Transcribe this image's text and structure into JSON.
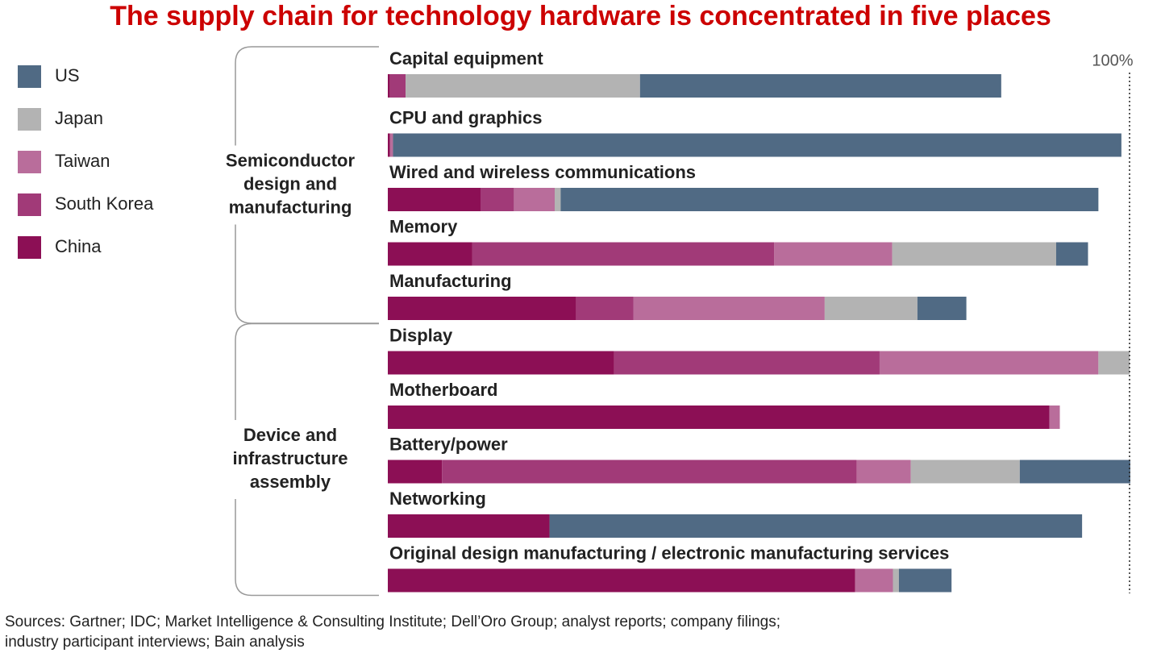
{
  "chart_data": {
    "type": "stacked-bar-horizontal",
    "title": "The supply chain for technology hardware is concentrated in five places",
    "groups": [
      {
        "label": [
          "Semiconductor",
          "design and",
          "manufacturing"
        ],
        "categories": [
          "Capital equipment",
          "CPU and graphics",
          "Wired and wireless communications",
          "Memory",
          "Manufacturing"
        ]
      },
      {
        "label": [
          "Device and",
          "infrastructure",
          "assembly"
        ],
        "categories": [
          "Display",
          "Motherboard",
          "Battery/power",
          "Networking",
          "Original design manufacturing / electronic manufacturing services"
        ]
      }
    ],
    "series": [
      {
        "name": "China",
        "color": "#8c0f55",
        "values": [
          0.3,
          0.3,
          12.5,
          11.4,
          25.4,
          30.5,
          89.2,
          7.3,
          21.8,
          63
        ]
      },
      {
        "name": "South Korea",
        "color": "#a13a78",
        "values": [
          2.1,
          0,
          4.5,
          40.7,
          7.7,
          35.8,
          0,
          55.9,
          0,
          0
        ]
      },
      {
        "name": "Taiwan",
        "color": "#b96d9b",
        "values": [
          0,
          0.4,
          5.5,
          15.9,
          25.8,
          29.5,
          1.4,
          7.3,
          0,
          5.1
        ]
      },
      {
        "name": "Japan",
        "color": "#b3b3b3",
        "values": [
          31.6,
          0,
          0.8,
          22.1,
          12.5,
          4.2,
          0,
          14.7,
          0,
          0.8
        ]
      },
      {
        "name": "US",
        "color": "#506a84",
        "values": [
          48.7,
          98.2,
          72.5,
          4.3,
          6.6,
          0,
          0,
          14.9,
          71.8,
          7.1
        ]
      }
    ],
    "xlim": [
      0,
      100
    ],
    "reference_line": {
      "value": 100,
      "label": "100%"
    },
    "legend_order": "reversed",
    "source": [
      "Sources: Gartner; IDC; Market Intelligence & Consulting Institute; Dell’Oro Group; analyst reports; company filings;",
      "industry participant interviews; Bain analysis"
    ]
  }
}
